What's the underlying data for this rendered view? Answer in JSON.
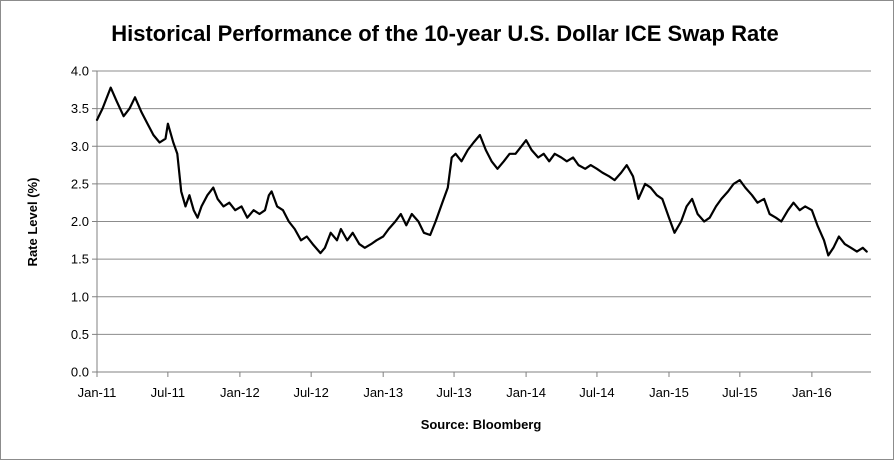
{
  "chart_data": {
    "type": "line",
    "title": "Historical Performance of the 10-year U.S. Dollar ICE Swap Rate",
    "ylabel": "Rate Level (%)",
    "xlabel": "Source: Bloomberg",
    "ylim": [
      0,
      4
    ],
    "yticks": [
      "0.0",
      "0.5",
      "1.0",
      "1.5",
      "2.0",
      "2.5",
      "3.0",
      "3.5",
      "4.0"
    ],
    "xticks": [
      "Jan-11",
      "Jul-11",
      "Jan-12",
      "Jul-12",
      "Jan-13",
      "Jul-13",
      "Jan-14",
      "Jul-14",
      "Jan-15",
      "Jul-15",
      "Jan-16"
    ],
    "xrange": [
      "2011-01-01",
      "2016-05-31"
    ],
    "grid": "horizontal",
    "series": [
      {
        "color": "#000000",
        "points": [
          [
            "2011-01-01",
            3.35
          ],
          [
            "2011-01-15",
            3.5
          ],
          [
            "2011-02-05",
            3.78
          ],
          [
            "2011-02-20",
            3.6
          ],
          [
            "2011-03-10",
            3.4
          ],
          [
            "2011-03-25",
            3.5
          ],
          [
            "2011-04-08",
            3.65
          ],
          [
            "2011-04-25",
            3.45
          ],
          [
            "2011-05-10",
            3.3
          ],
          [
            "2011-05-25",
            3.15
          ],
          [
            "2011-06-10",
            3.05
          ],
          [
            "2011-06-25",
            3.1
          ],
          [
            "2011-07-01",
            3.3
          ],
          [
            "2011-07-15",
            3.05
          ],
          [
            "2011-07-25",
            2.9
          ],
          [
            "2011-08-04",
            2.4
          ],
          [
            "2011-08-15",
            2.2
          ],
          [
            "2011-08-25",
            2.35
          ],
          [
            "2011-09-05",
            2.15
          ],
          [
            "2011-09-15",
            2.05
          ],
          [
            "2011-09-25",
            2.2
          ],
          [
            "2011-10-10",
            2.35
          ],
          [
            "2011-10-25",
            2.45
          ],
          [
            "2011-11-05",
            2.3
          ],
          [
            "2011-11-20",
            2.2
          ],
          [
            "2011-12-05",
            2.25
          ],
          [
            "2011-12-20",
            2.15
          ],
          [
            "2012-01-05",
            2.2
          ],
          [
            "2012-01-20",
            2.05
          ],
          [
            "2012-02-05",
            2.15
          ],
          [
            "2012-02-20",
            2.1
          ],
          [
            "2012-03-05",
            2.15
          ],
          [
            "2012-03-15",
            2.35
          ],
          [
            "2012-03-22",
            2.4
          ],
          [
            "2012-04-05",
            2.2
          ],
          [
            "2012-04-20",
            2.15
          ],
          [
            "2012-05-05",
            2.0
          ],
          [
            "2012-05-20",
            1.9
          ],
          [
            "2012-06-05",
            1.75
          ],
          [
            "2012-06-20",
            1.8
          ],
          [
            "2012-07-05",
            1.7
          ],
          [
            "2012-07-25",
            1.58
          ],
          [
            "2012-08-05",
            1.65
          ],
          [
            "2012-08-20",
            1.85
          ],
          [
            "2012-09-05",
            1.75
          ],
          [
            "2012-09-15",
            1.9
          ],
          [
            "2012-10-01",
            1.75
          ],
          [
            "2012-10-15",
            1.85
          ],
          [
            "2012-11-01",
            1.7
          ],
          [
            "2012-11-15",
            1.65
          ],
          [
            "2012-12-01",
            1.7
          ],
          [
            "2012-12-15",
            1.75
          ],
          [
            "2013-01-01",
            1.8
          ],
          [
            "2013-01-15",
            1.9
          ],
          [
            "2013-02-01",
            2.0
          ],
          [
            "2013-02-15",
            2.1
          ],
          [
            "2013-03-01",
            1.95
          ],
          [
            "2013-03-15",
            2.1
          ],
          [
            "2013-04-01",
            2.0
          ],
          [
            "2013-04-15",
            1.85
          ],
          [
            "2013-05-01",
            1.82
          ],
          [
            "2013-05-15",
            2.0
          ],
          [
            "2013-06-01",
            2.25
          ],
          [
            "2013-06-15",
            2.45
          ],
          [
            "2013-06-25",
            2.85
          ],
          [
            "2013-07-05",
            2.9
          ],
          [
            "2013-07-20",
            2.8
          ],
          [
            "2013-08-05",
            2.95
          ],
          [
            "2013-08-20",
            3.05
          ],
          [
            "2013-09-05",
            3.15
          ],
          [
            "2013-09-20",
            2.95
          ],
          [
            "2013-10-05",
            2.8
          ],
          [
            "2013-10-20",
            2.7
          ],
          [
            "2013-11-05",
            2.8
          ],
          [
            "2013-11-20",
            2.9
          ],
          [
            "2013-12-05",
            2.9
          ],
          [
            "2013-12-20",
            3.0
          ],
          [
            "2014-01-01",
            3.08
          ],
          [
            "2014-01-15",
            2.95
          ],
          [
            "2014-02-01",
            2.85
          ],
          [
            "2014-02-15",
            2.9
          ],
          [
            "2014-03-01",
            2.8
          ],
          [
            "2014-03-15",
            2.9
          ],
          [
            "2014-04-01",
            2.85
          ],
          [
            "2014-04-15",
            2.8
          ],
          [
            "2014-05-01",
            2.85
          ],
          [
            "2014-05-15",
            2.75
          ],
          [
            "2014-06-01",
            2.7
          ],
          [
            "2014-06-15",
            2.75
          ],
          [
            "2014-07-01",
            2.7
          ],
          [
            "2014-07-15",
            2.65
          ],
          [
            "2014-08-01",
            2.6
          ],
          [
            "2014-08-15",
            2.55
          ],
          [
            "2014-09-01",
            2.65
          ],
          [
            "2014-09-15",
            2.75
          ],
          [
            "2014-10-01",
            2.6
          ],
          [
            "2014-10-15",
            2.3
          ],
          [
            "2014-11-01",
            2.5
          ],
          [
            "2014-11-15",
            2.45
          ],
          [
            "2014-12-01",
            2.35
          ],
          [
            "2014-12-15",
            2.3
          ],
          [
            "2015-01-01",
            2.05
          ],
          [
            "2015-01-15",
            1.85
          ],
          [
            "2015-02-01",
            2.0
          ],
          [
            "2015-02-15",
            2.2
          ],
          [
            "2015-03-01",
            2.3
          ],
          [
            "2015-03-15",
            2.1
          ],
          [
            "2015-04-01",
            2.0
          ],
          [
            "2015-04-15",
            2.05
          ],
          [
            "2015-05-01",
            2.2
          ],
          [
            "2015-05-15",
            2.3
          ],
          [
            "2015-06-01",
            2.4
          ],
          [
            "2015-06-15",
            2.5
          ],
          [
            "2015-07-01",
            2.55
          ],
          [
            "2015-07-15",
            2.45
          ],
          [
            "2015-08-01",
            2.35
          ],
          [
            "2015-08-15",
            2.25
          ],
          [
            "2015-09-01",
            2.3
          ],
          [
            "2015-09-15",
            2.1
          ],
          [
            "2015-10-01",
            2.05
          ],
          [
            "2015-10-15",
            2.0
          ],
          [
            "2015-11-01",
            2.15
          ],
          [
            "2015-11-15",
            2.25
          ],
          [
            "2015-12-01",
            2.15
          ],
          [
            "2015-12-15",
            2.2
          ],
          [
            "2016-01-01",
            2.15
          ],
          [
            "2016-01-15",
            1.95
          ],
          [
            "2016-02-01",
            1.75
          ],
          [
            "2016-02-12",
            1.55
          ],
          [
            "2016-02-25",
            1.65
          ],
          [
            "2016-03-10",
            1.8
          ],
          [
            "2016-03-25",
            1.7
          ],
          [
            "2016-04-10",
            1.65
          ],
          [
            "2016-04-25",
            1.6
          ],
          [
            "2016-05-10",
            1.65
          ],
          [
            "2016-05-20",
            1.6
          ]
        ]
      }
    ]
  }
}
